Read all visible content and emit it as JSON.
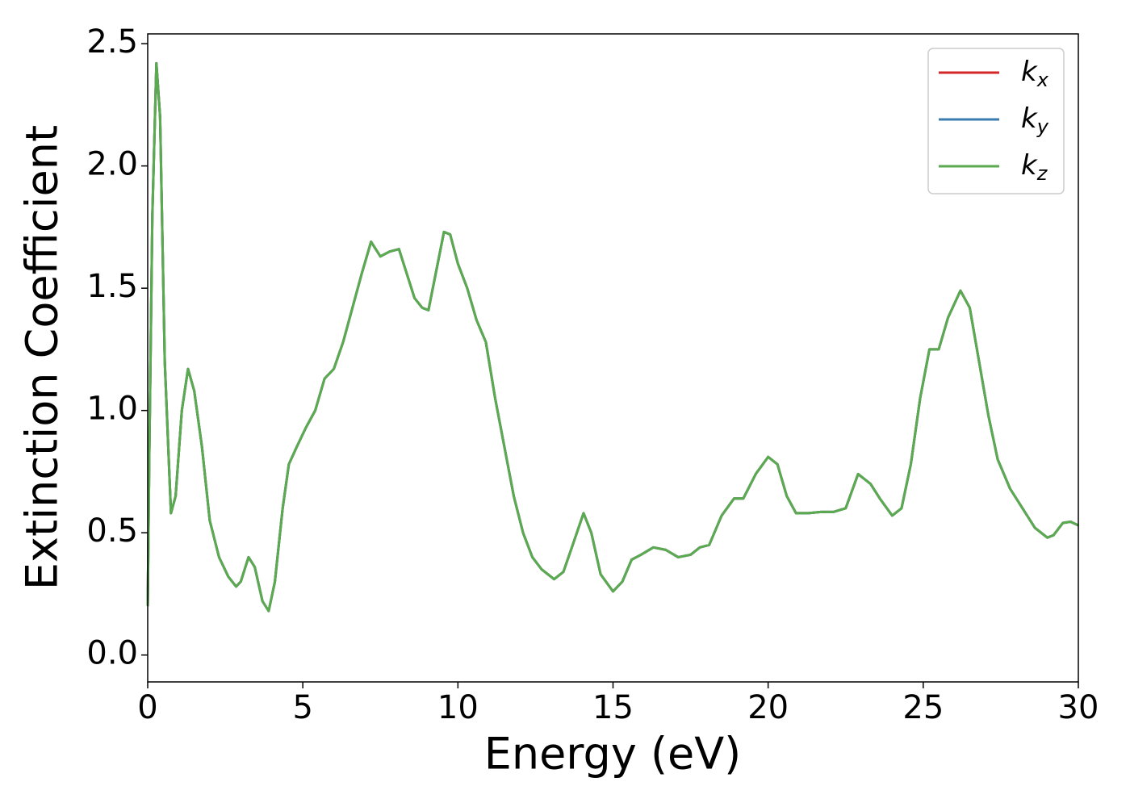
{
  "chart_data": {
    "type": "line",
    "xlabel": "Energy (eV)",
    "ylabel": "Extinction Coefficient",
    "xlim": [
      0,
      30
    ],
    "ylim": [
      -0.11,
      2.54
    ],
    "xticks": [
      0,
      5,
      10,
      15,
      20,
      25,
      30
    ],
    "yticks": [
      {
        "value": 0,
        "label": "0.0"
      },
      0.5,
      {
        "value": 1,
        "label": "1.0"
      },
      1.5,
      {
        "value": 2,
        "label": "2.0"
      },
      2.5
    ],
    "legend": "upper right",
    "x": [
      0,
      0.05,
      0.15,
      0.28,
      0.4,
      0.55,
      0.75,
      0.9,
      1.1,
      1.3,
      1.5,
      1.75,
      2.0,
      2.3,
      2.6,
      2.85,
      3.0,
      3.25,
      3.45,
      3.7,
      3.9,
      4.1,
      4.35,
      4.55,
      4.8,
      5.1,
      5.4,
      5.7,
      6.0,
      6.3,
      6.6,
      6.9,
      7.2,
      7.5,
      7.8,
      8.1,
      8.3,
      8.6,
      8.85,
      9.05,
      9.3,
      9.55,
      9.75,
      10.0,
      10.3,
      10.6,
      10.9,
      11.2,
      11.5,
      11.8,
      12.1,
      12.4,
      12.7,
      13.1,
      13.4,
      13.7,
      14.05,
      14.3,
      14.6,
      15.0,
      15.3,
      15.6,
      15.9,
      16.3,
      16.7,
      17.1,
      17.5,
      17.8,
      18.1,
      18.5,
      18.9,
      19.2,
      19.6,
      20.0,
      20.3,
      20.6,
      20.9,
      21.3,
      21.7,
      22.1,
      22.5,
      22.9,
      23.3,
      23.6,
      24.0,
      24.3,
      24.6,
      24.9,
      25.2,
      25.5,
      25.8,
      26.2,
      26.5,
      26.8,
      27.1,
      27.4,
      27.8,
      28.2,
      28.6,
      29.0,
      29.2,
      29.5,
      29.75,
      30.0
    ],
    "series": [
      {
        "name": "kx",
        "color": "#d62728",
        "values": [
          0.2,
          0.8,
          1.8,
          2.42,
          2.2,
          1.2,
          0.58,
          0.65,
          1.0,
          1.17,
          1.08,
          0.85,
          0.55,
          0.4,
          0.32,
          0.28,
          0.3,
          0.4,
          0.36,
          0.22,
          0.18,
          0.3,
          0.6,
          0.78,
          0.85,
          0.93,
          1.0,
          1.13,
          1.17,
          1.28,
          1.42,
          1.56,
          1.69,
          1.63,
          1.65,
          1.66,
          1.58,
          1.46,
          1.42,
          1.41,
          1.57,
          1.73,
          1.72,
          1.6,
          1.5,
          1.37,
          1.28,
          1.05,
          0.85,
          0.65,
          0.5,
          0.4,
          0.35,
          0.31,
          0.34,
          0.45,
          0.58,
          0.5,
          0.33,
          0.26,
          0.3,
          0.39,
          0.41,
          0.44,
          0.43,
          0.4,
          0.41,
          0.44,
          0.45,
          0.57,
          0.64,
          0.64,
          0.74,
          0.81,
          0.78,
          0.65,
          0.58,
          0.58,
          0.585,
          0.585,
          0.6,
          0.74,
          0.7,
          0.64,
          0.57,
          0.6,
          0.78,
          1.05,
          1.25,
          1.25,
          1.38,
          1.49,
          1.42,
          1.2,
          0.98,
          0.8,
          0.68,
          0.6,
          0.52,
          0.48,
          0.49,
          0.54,
          0.545,
          0.53
        ]
      },
      {
        "name": "ky",
        "color": "#3a7bb0",
        "values": [
          0.2,
          0.8,
          1.8,
          2.42,
          2.2,
          1.2,
          0.58,
          0.65,
          1.0,
          1.17,
          1.08,
          0.85,
          0.55,
          0.4,
          0.32,
          0.28,
          0.3,
          0.4,
          0.36,
          0.22,
          0.18,
          0.3,
          0.6,
          0.78,
          0.85,
          0.93,
          1.0,
          1.13,
          1.17,
          1.28,
          1.42,
          1.56,
          1.69,
          1.63,
          1.65,
          1.66,
          1.58,
          1.46,
          1.42,
          1.41,
          1.57,
          1.73,
          1.72,
          1.6,
          1.5,
          1.37,
          1.28,
          1.05,
          0.85,
          0.65,
          0.5,
          0.4,
          0.35,
          0.31,
          0.34,
          0.45,
          0.58,
          0.5,
          0.33,
          0.26,
          0.3,
          0.39,
          0.41,
          0.44,
          0.43,
          0.4,
          0.41,
          0.44,
          0.45,
          0.57,
          0.64,
          0.64,
          0.74,
          0.81,
          0.78,
          0.65,
          0.58,
          0.58,
          0.585,
          0.585,
          0.6,
          0.74,
          0.7,
          0.64,
          0.57,
          0.6,
          0.78,
          1.05,
          1.25,
          1.25,
          1.38,
          1.49,
          1.42,
          1.2,
          0.98,
          0.8,
          0.68,
          0.6,
          0.52,
          0.48,
          0.49,
          0.54,
          0.545,
          0.53
        ]
      },
      {
        "name": "kz",
        "color": "#5aaa50",
        "values": [
          0.2,
          0.8,
          1.8,
          2.42,
          2.2,
          1.2,
          0.58,
          0.65,
          1.0,
          1.17,
          1.08,
          0.85,
          0.55,
          0.4,
          0.32,
          0.28,
          0.3,
          0.4,
          0.36,
          0.22,
          0.18,
          0.3,
          0.6,
          0.78,
          0.85,
          0.93,
          1.0,
          1.13,
          1.17,
          1.28,
          1.42,
          1.56,
          1.69,
          1.63,
          1.65,
          1.66,
          1.58,
          1.46,
          1.42,
          1.41,
          1.57,
          1.73,
          1.72,
          1.6,
          1.5,
          1.37,
          1.28,
          1.05,
          0.85,
          0.65,
          0.5,
          0.4,
          0.35,
          0.31,
          0.34,
          0.45,
          0.58,
          0.5,
          0.33,
          0.26,
          0.3,
          0.39,
          0.41,
          0.44,
          0.43,
          0.4,
          0.41,
          0.44,
          0.45,
          0.57,
          0.64,
          0.64,
          0.74,
          0.81,
          0.78,
          0.65,
          0.58,
          0.58,
          0.585,
          0.585,
          0.6,
          0.74,
          0.7,
          0.64,
          0.57,
          0.6,
          0.78,
          1.05,
          1.25,
          1.25,
          1.38,
          1.49,
          1.42,
          1.2,
          0.98,
          0.8,
          0.68,
          0.6,
          0.52,
          0.48,
          0.49,
          0.54,
          0.545,
          0.53
        ]
      }
    ]
  }
}
